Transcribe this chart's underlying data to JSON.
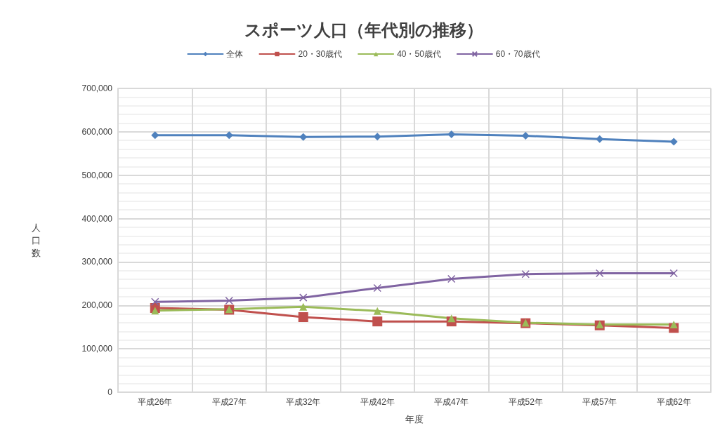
{
  "chart_data": {
    "type": "line",
    "title": "スポーツ人口（年代別の推移）",
    "xlabel": "年度",
    "ylabel": "人口数",
    "categories": [
      "平成26年",
      "平成27年",
      "平成32年",
      "平成42年",
      "平成47年",
      "平成52年",
      "平成57年",
      "平成62年"
    ],
    "series": [
      {
        "name": "全体",
        "color": "#4f81bd",
        "marker": "diamond",
        "values": [
          592000,
          592000,
          588000,
          589000,
          594000,
          591000,
          583000,
          577000
        ]
      },
      {
        "name": "20・30歳代",
        "color": "#c0504d",
        "marker": "square",
        "values": [
          194000,
          190000,
          173000,
          163000,
          163000,
          159000,
          154000,
          148000
        ]
      },
      {
        "name": "40・50歳代",
        "color": "#9bbb59",
        "marker": "triangle",
        "values": [
          188000,
          191000,
          197000,
          187000,
          170000,
          160000,
          156000,
          156000
        ]
      },
      {
        "name": "60・70歳代",
        "color": "#8064a2",
        "marker": "cross",
        "values": [
          208000,
          211000,
          218000,
          240000,
          261000,
          272000,
          274000,
          274000
        ]
      }
    ],
    "ylim": [
      0,
      700000
    ],
    "yticks": [
      0,
      {
        "value": 100000,
        "label": "100,000"
      },
      {
        "value": 200000,
        "label": "200,000"
      },
      {
        "value": 300000,
        "label": "300,000"
      },
      {
        "value": 400000,
        "label": "400,000"
      },
      {
        "value": 500000,
        "label": "500,000"
      },
      {
        "value": 600000,
        "label": "600,000"
      },
      {
        "value": 700000,
        "label": "700,000"
      }
    ],
    "grid": true,
    "legend": "top",
    "line_style": "solid"
  }
}
